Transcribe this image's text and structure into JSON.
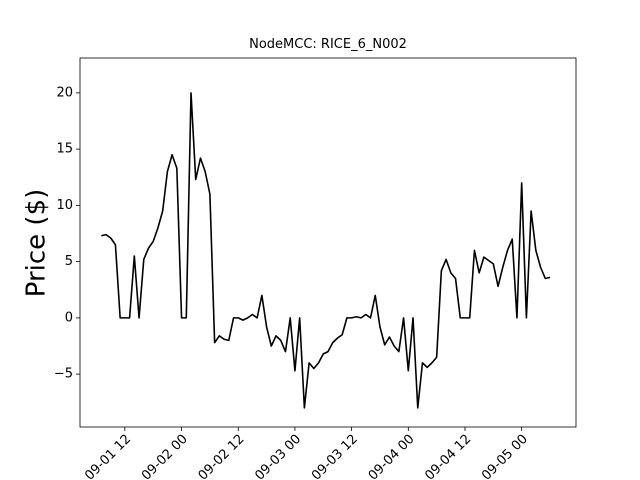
{
  "chart_data": {
    "type": "line",
    "title": "NodeMCC: RICE_6_N002",
    "ylabel": "Price ($)",
    "x": [
      "09-01 07:00",
      "09-01 08:00",
      "09-01 09:00",
      "09-01 10:00",
      "09-01 11:00",
      "09-01 12:00",
      "09-01 13:00",
      "09-01 14:00",
      "09-01 15:00",
      "09-01 16:00",
      "09-01 17:00",
      "09-01 18:00",
      "09-01 19:00",
      "09-01 20:00",
      "09-01 21:00",
      "09-01 22:00",
      "09-01 23:00",
      "09-02 00:00",
      "09-02 01:00",
      "09-02 02:00",
      "09-02 03:00",
      "09-02 04:00",
      "09-02 05:00",
      "09-02 06:00",
      "09-02 07:00",
      "09-02 08:00",
      "09-02 09:00",
      "09-02 10:00",
      "09-02 11:00",
      "09-02 12:00",
      "09-02 13:00",
      "09-02 14:00",
      "09-02 15:00",
      "09-02 16:00",
      "09-02 17:00",
      "09-02 18:00",
      "09-02 19:00",
      "09-02 20:00",
      "09-02 21:00",
      "09-02 22:00",
      "09-02 23:00",
      "09-03 00:00",
      "09-03 01:00",
      "09-03 02:00",
      "09-03 03:00",
      "09-03 04:00",
      "09-03 05:00",
      "09-03 06:00",
      "09-03 07:00",
      "09-03 08:00",
      "09-03 09:00",
      "09-03 10:00",
      "09-03 11:00",
      "09-03 12:00",
      "09-03 13:00",
      "09-03 14:00",
      "09-03 15:00",
      "09-03 16:00",
      "09-03 17:00",
      "09-03 18:00",
      "09-03 19:00",
      "09-03 20:00",
      "09-03 21:00",
      "09-03 22:00",
      "09-03 23:00",
      "09-04 00:00",
      "09-04 01:00",
      "09-04 02:00",
      "09-04 03:00",
      "09-04 04:00",
      "09-04 05:00",
      "09-04 06:00",
      "09-04 07:00",
      "09-04 08:00",
      "09-04 09:00",
      "09-04 10:00",
      "09-04 11:00",
      "09-04 12:00",
      "09-04 13:00",
      "09-04 14:00",
      "09-04 15:00",
      "09-04 16:00",
      "09-04 17:00",
      "09-04 18:00",
      "09-04 19:00",
      "09-04 20:00",
      "09-04 21:00",
      "09-04 22:00",
      "09-04 23:00",
      "09-05 00:00",
      "09-05 01:00",
      "09-05 02:00",
      "09-05 03:00",
      "09-05 04:00",
      "09-05 05:00",
      "09-05 06:00"
    ],
    "series": [
      {
        "color": "#000000",
        "values": [
          7.3,
          7.4,
          7.1,
          6.5,
          0,
          0,
          0,
          5.5,
          0,
          5.2,
          6.2,
          6.8,
          8,
          9.5,
          13,
          14.5,
          13.3,
          0,
          0,
          20,
          12.3,
          14.2,
          13,
          11,
          -2.2,
          -1.6,
          -1.9,
          -2,
          0,
          0,
          -0.2,
          0,
          0.3,
          0,
          2,
          -0.8,
          -2.5,
          -1.6,
          -2,
          -3,
          0,
          -4.7,
          0,
          -8,
          -4,
          -4.5,
          -4,
          -3.2,
          -3,
          -2.2,
          -1.8,
          -1.5,
          0,
          0,
          0.1,
          0,
          0.3,
          0,
          2,
          -0.8,
          -2.4,
          -1.7,
          -2.5,
          -3,
          0,
          -4.7,
          0,
          -8,
          -4,
          -4.4,
          -4,
          -3.5,
          4.2,
          5.2,
          4,
          3.5,
          0,
          0,
          0,
          6,
          4,
          5.4,
          5.1,
          4.8,
          2.8,
          4.5,
          6,
          7,
          0,
          12,
          0,
          9.5,
          6,
          4.5,
          3.5,
          3.6
        ]
      }
    ],
    "xlim": [
      "09-01 02:30",
      "09-05 11:30"
    ],
    "xticks": [
      {
        "value": "09-01 12:00",
        "label": "09-01 12"
      },
      {
        "value": "09-02 00:00",
        "label": "09-02 00"
      },
      {
        "value": "09-02 12:00",
        "label": "09-02 12"
      },
      {
        "value": "09-03 00:00",
        "label": "09-03 00"
      },
      {
        "value": "09-03 12:00",
        "label": "09-03 12"
      },
      {
        "value": "09-04 00:00",
        "label": "09-04 00"
      },
      {
        "value": "09-04 12:00",
        "label": "09-04 12"
      },
      {
        "value": "09-05 00:00",
        "label": "09-05 00"
      }
    ],
    "ylim": [
      -9.7,
      23.1
    ],
    "yticks": [
      {
        "value": -5,
        "label": "−5"
      },
      0,
      5,
      10,
      15,
      20
    ]
  }
}
